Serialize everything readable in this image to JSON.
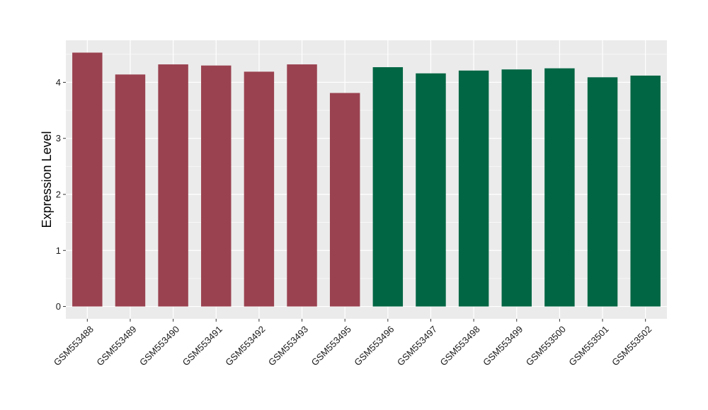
{
  "chart_data": {
    "type": "bar",
    "title": "",
    "xlabel": "",
    "ylabel": "Expression Level",
    "ylim": [
      -0.22,
      4.75
    ],
    "yticks": [
      0,
      1,
      2,
      3,
      4
    ],
    "ytick_labels": [
      "0",
      "1",
      "2",
      "3",
      "4"
    ],
    "grid": true,
    "legend": "none",
    "categories": [
      "GSM553488",
      "GSM553489",
      "GSM553490",
      "GSM553491",
      "GSM553492",
      "GSM553493",
      "GSM553495",
      "GSM553496",
      "GSM553497",
      "GSM553498",
      "GSM553499",
      "GSM553500",
      "GSM553501",
      "GSM553502"
    ],
    "values": [
      4.53,
      4.14,
      4.32,
      4.3,
      4.19,
      4.32,
      3.81,
      4.27,
      4.16,
      4.21,
      4.23,
      4.25,
      4.09,
      4.12
    ],
    "bar_colors": [
      "#9a4250",
      "#9a4250",
      "#9a4250",
      "#9a4250",
      "#9a4250",
      "#9a4250",
      "#9a4250",
      "#006644",
      "#006644",
      "#006644",
      "#006644",
      "#006644",
      "#006644",
      "#006644"
    ],
    "panel_background": "#ebebeb",
    "gridline_color": "#ffffff"
  }
}
